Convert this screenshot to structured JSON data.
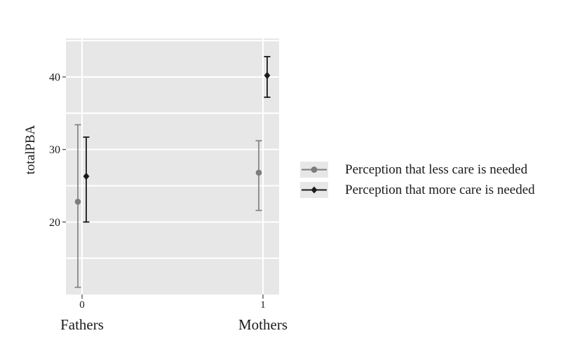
{
  "figure": {
    "background": "#ffffff"
  },
  "chart_data": {
    "type": "errorbar",
    "title": "",
    "xlabel": "",
    "ylabel": "totalPBA",
    "ylim": [
      10,
      45.3
    ],
    "y_major_ticks": [
      20,
      30,
      40
    ],
    "y_gridlines": [
      15,
      20,
      25,
      30,
      35,
      40,
      45
    ],
    "x": [
      0,
      1
    ],
    "x_tick_labels": [
      "0",
      "1"
    ],
    "x_group_labels": [
      "Fathers",
      "Mothers"
    ],
    "grid": true,
    "legend_position": "right-center",
    "panel_bg": "#e7e7e7",
    "grid_color": "#ffffff",
    "tick_color": "#4d4d4d",
    "text_color": "#1a1a1a",
    "series": [
      {
        "name": "Perception that less care is needed",
        "marker": "circle",
        "color": "#7d7d7d",
        "points": [
          {
            "x": 0,
            "group": "Fathers",
            "estimate": 22.8,
            "ci_low": 11.0,
            "ci_high": 33.4
          },
          {
            "x": 1,
            "group": "Mothers",
            "estimate": 26.8,
            "ci_low": 21.6,
            "ci_high": 31.2
          }
        ]
      },
      {
        "name": "Perception that more care is needed",
        "marker": "diamond",
        "color": "#1a1a1a",
        "points": [
          {
            "x": 0,
            "group": "Fathers",
            "estimate": 26.3,
            "ci_low": 20.0,
            "ci_high": 31.7
          },
          {
            "x": 1,
            "group": "Mothers",
            "estimate": 40.2,
            "ci_low": 37.2,
            "ci_high": 42.8
          }
        ]
      }
    ]
  }
}
